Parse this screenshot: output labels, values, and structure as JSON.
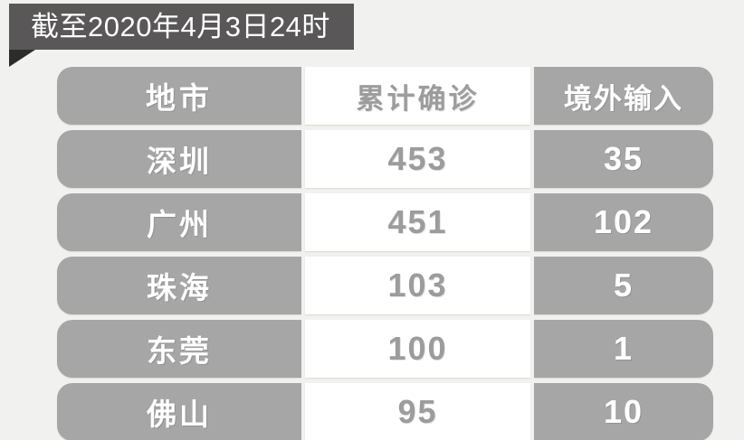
{
  "banner": {
    "title": "截至2020年4月3日24时"
  },
  "table": {
    "header": {
      "city": "地市",
      "confirmed": "累计确诊",
      "imported": "境外输入"
    },
    "rows": [
      {
        "city": "深圳",
        "confirmed": "453",
        "imported": "35"
      },
      {
        "city": "广州",
        "confirmed": "451",
        "imported": "102"
      },
      {
        "city": "珠海",
        "confirmed": "103",
        "imported": "5"
      },
      {
        "city": "东莞",
        "confirmed": "100",
        "imported": "1"
      },
      {
        "city": "佛山",
        "confirmed": "95",
        "imported": "10"
      }
    ]
  },
  "colors": {
    "page_bg": "#f1f1ef",
    "banner_bg": "#595757",
    "banner_fold": "#2d2c2c",
    "banner_text": "#ffffff",
    "cell_gray_bg": "#a6a6a6",
    "cell_white_bg": "#ffffff",
    "cell_text_white": "#ffffff",
    "cell_text_gray": "#9c9c9c"
  },
  "chart_data": {
    "type": "table",
    "title": "截至2020年4月3日24时",
    "columns": [
      "地市",
      "累计确诊",
      "境外输入"
    ],
    "rows": [
      [
        "深圳",
        453,
        35
      ],
      [
        "广州",
        451,
        102
      ],
      [
        "珠海",
        103,
        5
      ],
      [
        "东莞",
        100,
        1
      ],
      [
        "佛山",
        95,
        10
      ]
    ],
    "notes": "Static infographic table; gray pill rows, middle column white with gray text; last row clipped by image bottom edge."
  }
}
